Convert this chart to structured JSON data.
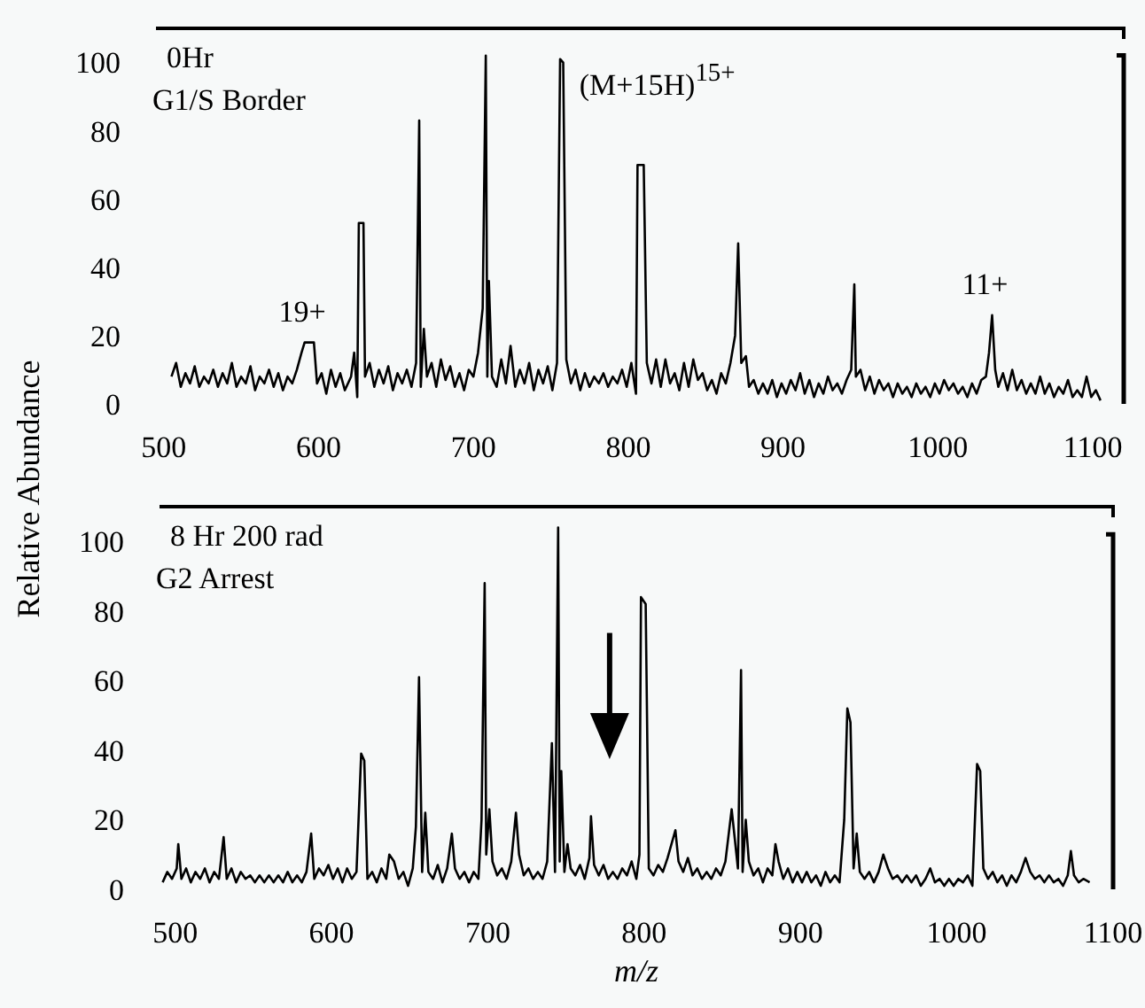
{
  "chart_data": [
    {
      "type": "line",
      "title": "0Hr",
      "subtitle": "G1/S Border",
      "ylabel": "Relative Abundance",
      "annotations": [
        {
          "text": "19+",
          "x": 594,
          "y": 18
        },
        {
          "text": "(M+15H)$^{15+}$",
          "x": 757,
          "y": 101
        },
        {
          "text": "11+",
          "x": 1035,
          "y": 26
        }
      ],
      "x": [
        505,
        508,
        511,
        514,
        517,
        520,
        523,
        526,
        529,
        532,
        535,
        538,
        541,
        544,
        547,
        550,
        553,
        556,
        559,
        562,
        565,
        568,
        571,
        574,
        577,
        580,
        583,
        586,
        589,
        591,
        597,
        599,
        602,
        605,
        608,
        611,
        614,
        617,
        621,
        623,
        625,
        626,
        629,
        630,
        633,
        636,
        639,
        642,
        645,
        648,
        651,
        654,
        657,
        660,
        663,
        665,
        666,
        668,
        670,
        673,
        676,
        679,
        682,
        685,
        688,
        691,
        694,
        697,
        700,
        703,
        706,
        708,
        709,
        710,
        712,
        715,
        718,
        721,
        724,
        727,
        730,
        733,
        736,
        739,
        742,
        745,
        748,
        751,
        754,
        756,
        758,
        760,
        763,
        766,
        769,
        772,
        775,
        778,
        781,
        784,
        787,
        790,
        793,
        796,
        799,
        802,
        805,
        806,
        810,
        812,
        815,
        818,
        821,
        824,
        827,
        830,
        833,
        836,
        839,
        842,
        845,
        848,
        851,
        854,
        857,
        860,
        863,
        866,
        869,
        871,
        873,
        876,
        878,
        881,
        884,
        887,
        890,
        893,
        896,
        899,
        902,
        905,
        908,
        911,
        914,
        917,
        920,
        923,
        926,
        929,
        932,
        935,
        938,
        941,
        944,
        946,
        947,
        950,
        953,
        956,
        959,
        962,
        965,
        968,
        971,
        974,
        977,
        980,
        983,
        986,
        989,
        992,
        995,
        998,
        1001,
        1004,
        1007,
        1010,
        1013,
        1016,
        1019,
        1022,
        1025,
        1028,
        1031,
        1033,
        1035,
        1037,
        1039,
        1042,
        1045,
        1048,
        1051,
        1054,
        1057,
        1060,
        1063,
        1066,
        1069,
        1072,
        1075,
        1078,
        1081,
        1084,
        1087,
        1090,
        1093,
        1096,
        1099,
        1102,
        1105
      ],
      "series": [
        {
          "color": "#000000",
          "values": [
            8,
            12,
            5,
            9,
            6,
            11,
            5,
            8,
            6,
            10,
            5,
            9,
            6,
            12,
            5,
            8,
            6,
            11,
            4,
            8,
            6,
            10,
            5,
            9,
            4,
            8,
            6,
            10,
            15,
            18,
            18,
            6,
            9,
            3,
            10,
            5,
            9,
            4,
            8,
            15,
            2,
            53,
            53,
            8,
            12,
            5,
            10,
            6,
            11,
            4,
            9,
            6,
            10,
            5,
            12,
            83,
            5,
            22,
            8,
            12,
            5,
            13,
            7,
            11,
            5,
            9,
            4,
            10,
            8,
            15,
            28,
            102,
            8,
            36,
            8,
            5,
            13,
            6,
            17,
            5,
            10,
            6,
            12,
            4,
            10,
            6,
            11,
            4,
            12,
            101,
            100,
            13,
            6,
            10,
            4,
            9,
            5,
            8,
            6,
            9,
            5,
            8,
            6,
            10,
            5,
            12,
            3,
            70,
            70,
            12,
            6,
            13,
            5,
            13,
            6,
            9,
            4,
            12,
            5,
            13,
            7,
            9,
            4,
            7,
            3,
            9,
            6,
            12,
            20,
            47,
            12,
            14,
            5,
            7,
            3,
            6,
            3,
            7,
            2,
            6,
            3,
            7,
            4,
            9,
            3,
            7,
            2,
            6,
            3,
            8,
            4,
            6,
            3,
            7,
            10,
            35,
            8,
            10,
            4,
            8,
            3,
            7,
            4,
            6,
            2,
            6,
            3,
            5,
            2,
            6,
            3,
            5,
            2,
            6,
            3,
            7,
            4,
            6,
            3,
            5,
            2,
            6,
            3,
            7,
            8,
            15,
            26,
            10,
            5,
            9,
            4,
            10,
            4,
            7,
            3,
            6,
            3,
            8,
            3,
            6,
            2,
            5,
            3,
            7,
            2,
            4,
            2,
            8,
            2,
            4,
            1
          ]
        }
      ],
      "xlim": [
        495,
        1120
      ],
      "ylim": [
        0,
        110
      ],
      "xticks": [
        500,
        600,
        700,
        800,
        900,
        1000,
        1100
      ],
      "yticks": [
        0,
        20,
        40,
        60,
        80,
        100
      ]
    },
    {
      "type": "line",
      "title": "8 Hr 200 rad",
      "subtitle": "G2 Arrest",
      "xlabel": "m/z",
      "x": [
        492,
        495,
        498,
        501,
        502,
        504,
        507,
        510,
        513,
        516,
        519,
        522,
        525,
        528,
        531,
        533,
        536,
        539,
        542,
        545,
        548,
        551,
        554,
        557,
        560,
        563,
        566,
        569,
        572,
        575,
        578,
        581,
        584,
        587,
        589,
        592,
        595,
        598,
        601,
        604,
        607,
        610,
        613,
        616,
        619,
        621,
        623,
        626,
        629,
        632,
        635,
        637,
        640,
        643,
        646,
        649,
        652,
        654,
        656,
        658,
        660,
        662,
        665,
        668,
        671,
        674,
        677,
        679,
        682,
        685,
        688,
        691,
        694,
        696,
        698,
        699,
        701,
        703,
        706,
        709,
        712,
        715,
        718,
        720,
        723,
        726,
        729,
        732,
        735,
        738,
        741,
        743,
        745,
        746,
        747,
        749,
        751,
        753,
        756,
        759,
        762,
        765,
        766,
        768,
        771,
        774,
        777,
        780,
        783,
        786,
        789,
        792,
        795,
        797,
        798,
        801,
        803,
        806,
        809,
        812,
        815,
        820,
        822,
        825,
        828,
        831,
        834,
        837,
        840,
        843,
        846,
        849,
        852,
        856,
        860,
        862,
        863,
        865,
        867,
        870,
        873,
        876,
        879,
        882,
        884,
        886,
        889,
        892,
        895,
        898,
        901,
        904,
        907,
        910,
        913,
        916,
        919,
        922,
        925,
        928,
        930,
        932,
        934,
        936,
        938,
        941,
        944,
        947,
        950,
        953,
        956,
        959,
        962,
        965,
        968,
        971,
        974,
        977,
        980,
        983,
        986,
        989,
        992,
        995,
        998,
        1001,
        1004,
        1007,
        1010,
        1013,
        1015,
        1017,
        1020,
        1023,
        1026,
        1029,
        1032,
        1035,
        1038,
        1041,
        1044,
        1047,
        1050,
        1053,
        1056,
        1059,
        1062,
        1065,
        1068,
        1071,
        1073,
        1075,
        1078,
        1081,
        1085
      ],
      "series": [
        {
          "color": "#000000",
          "values": [
            2,
            5,
            3,
            6,
            13,
            3,
            6,
            2,
            5,
            3,
            6,
            2,
            5,
            3,
            15,
            3,
            6,
            2,
            5,
            3,
            4,
            2,
            4,
            2,
            4,
            2,
            4,
            2,
            5,
            2,
            4,
            2,
            5,
            16,
            3,
            6,
            4,
            7,
            3,
            6,
            2,
            6,
            3,
            5,
            39,
            37,
            3,
            5,
            2,
            6,
            3,
            10,
            8,
            3,
            5,
            1,
            6,
            18,
            61,
            5,
            22,
            5,
            3,
            7,
            2,
            6,
            16,
            6,
            3,
            5,
            2,
            5,
            3,
            20,
            88,
            10,
            23,
            8,
            4,
            6,
            3,
            8,
            22,
            10,
            4,
            6,
            3,
            5,
            3,
            8,
            42,
            5,
            104,
            8,
            34,
            5,
            13,
            6,
            4,
            7,
            3,
            9,
            21,
            7,
            4,
            7,
            3,
            5,
            3,
            6,
            4,
            8,
            3,
            10,
            84,
            82,
            6,
            4,
            7,
            5,
            9,
            17,
            8,
            5,
            9,
            4,
            6,
            3,
            5,
            3,
            6,
            4,
            8,
            23,
            6,
            63,
            5,
            20,
            8,
            4,
            6,
            2,
            6,
            4,
            13,
            8,
            3,
            6,
            2,
            5,
            2,
            5,
            2,
            4,
            1,
            5,
            2,
            4,
            2,
            20,
            52,
            48,
            6,
            16,
            5,
            3,
            5,
            2,
            5,
            10,
            6,
            3,
            4,
            2,
            4,
            2,
            4,
            1,
            3,
            6,
            2,
            3,
            1,
            3,
            1,
            3,
            2,
            4,
            1,
            36,
            34,
            6,
            3,
            5,
            2,
            4,
            1,
            4,
            2,
            5,
            9,
            5,
            3,
            4,
            2,
            4,
            2,
            3,
            1,
            4,
            11,
            4,
            2,
            3,
            2
          ]
        }
      ],
      "xlim": [
        490,
        1100
      ],
      "ylim": [
        0,
        110
      ],
      "xticks": [
        500,
        600,
        700,
        800,
        900,
        1000,
        1100
      ],
      "yticks": [
        0,
        20,
        40,
        60,
        80,
        100
      ]
    }
  ]
}
